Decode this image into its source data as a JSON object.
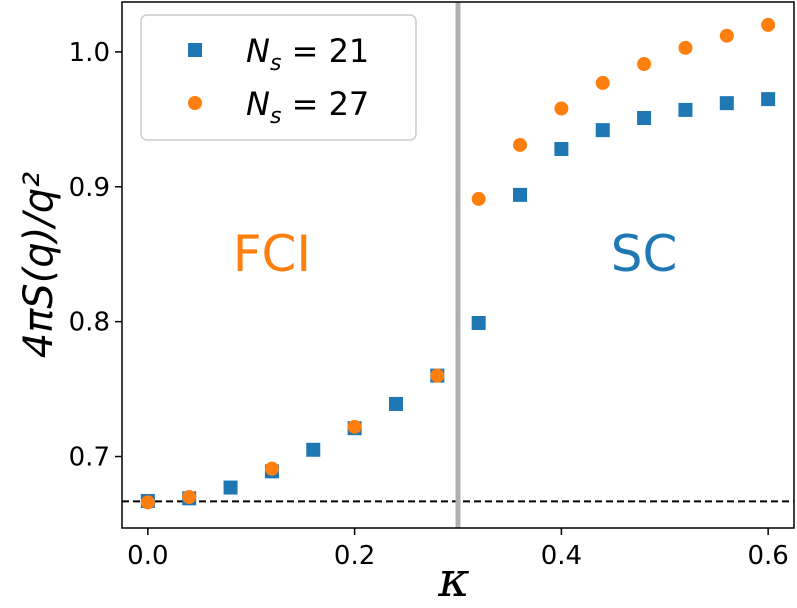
{
  "chart_data": {
    "type": "scatter",
    "xlabel": "κ",
    "ylabel": "4πS(q)/q²",
    "xlim": [
      -0.025,
      0.625
    ],
    "ylim": [
      0.647,
      1.037
    ],
    "xticks": [
      0.0,
      0.2,
      0.4,
      0.6
    ],
    "xtick_labels": [
      "0.0",
      "0.2",
      "0.4",
      "0.6"
    ],
    "yticks": [
      0.7,
      0.8,
      0.9,
      1.0
    ],
    "ytick_labels": [
      "0.7",
      "0.8",
      "0.9",
      "1.0"
    ],
    "grid": false,
    "legend_position": "top-left",
    "series": [
      {
        "name": "N_s = 21",
        "legend_main": "N",
        "legend_sub": "s",
        "legend_rest": " = 21",
        "marker": "square",
        "color": "#1f77b4",
        "x": [
          0.0,
          0.04,
          0.08,
          0.12,
          0.16,
          0.2,
          0.24,
          0.28,
          0.32,
          0.36,
          0.4,
          0.44,
          0.48,
          0.52,
          0.56,
          0.6
        ],
        "y": [
          0.667,
          0.669,
          0.677,
          0.689,
          0.705,
          0.721,
          0.739,
          0.76,
          0.799,
          0.894,
          0.928,
          0.942,
          0.951,
          0.957,
          0.962,
          0.965
        ]
      },
      {
        "name": "N_s = 27",
        "legend_main": "N",
        "legend_sub": "s",
        "legend_rest": " = 27",
        "marker": "circle",
        "color": "#ff7f0e",
        "x": [
          0.0,
          0.04,
          0.12,
          0.2,
          0.28,
          0.32,
          0.36,
          0.4,
          0.44,
          0.48,
          0.52,
          0.56,
          0.6
        ],
        "y": [
          0.666,
          0.67,
          0.691,
          0.722,
          0.76,
          0.891,
          0.931,
          0.958,
          0.977,
          0.991,
          1.003,
          1.012,
          1.02
        ]
      }
    ],
    "vline": {
      "x": 0.3,
      "color": "#b0b0b0"
    },
    "hline": {
      "y": 0.6667,
      "style": "dashed",
      "color": "#000000"
    },
    "annotations": [
      {
        "text": "FCI",
        "color": "#ff7f0e"
      },
      {
        "text": "SC",
        "color": "#1f77b4"
      }
    ]
  }
}
